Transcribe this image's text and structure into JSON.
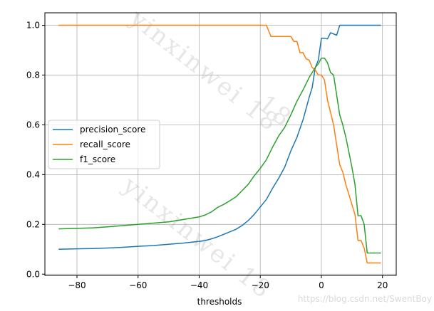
{
  "chart_data": {
    "type": "line",
    "title": "",
    "xlabel": "thresholds",
    "ylabel": "",
    "xlim": [
      -90.5,
      24.5
    ],
    "ylim": [
      -0.005,
      1.05
    ],
    "xticks": [
      -80,
      -60,
      -40,
      -20,
      0,
      20
    ],
    "xtick_labels": [
      "−80",
      "−60",
      "−40",
      "−20",
      "0",
      "20"
    ],
    "yticks": [
      0.0,
      0.2,
      0.4,
      0.6,
      0.8,
      1.0
    ],
    "ytick_labels": [
      "0.0",
      "0.2",
      "0.4",
      "0.6",
      "0.8",
      "1.0"
    ],
    "grid": true,
    "legend_position": "center-left",
    "series": [
      {
        "name": "precision_score",
        "color": "#1f77b4",
        "x": [
          -86,
          -80,
          -75,
          -70,
          -65,
          -60,
          -55,
          -50,
          -45,
          -40,
          -38,
          -36,
          -34,
          -32,
          -30,
          -28,
          -26,
          -24,
          -22,
          -20,
          -18,
          -16,
          -14,
          -12,
          -10,
          -8,
          -6,
          -4,
          -3,
          -2,
          -1,
          0,
          1,
          2,
          3,
          4,
          5,
          6,
          8,
          10,
          12,
          14,
          16,
          18,
          19.5
        ],
        "y": [
          0.1,
          0.102,
          0.103,
          0.105,
          0.108,
          0.112,
          0.115,
          0.12,
          0.125,
          0.132,
          0.135,
          0.142,
          0.15,
          0.16,
          0.17,
          0.18,
          0.195,
          0.215,
          0.24,
          0.27,
          0.3,
          0.345,
          0.385,
          0.43,
          0.495,
          0.55,
          0.62,
          0.71,
          0.75,
          0.83,
          0.86,
          0.948,
          0.948,
          0.945,
          0.97,
          0.965,
          0.96,
          1.0,
          1.0,
          1.0,
          1.0,
          1.0,
          1.0,
          1.0,
          1.0
        ]
      },
      {
        "name": "recall_score",
        "color": "#ff7f0e",
        "x": [
          -86,
          -80,
          -60,
          -40,
          -20,
          -18,
          -16.5,
          -14,
          -12,
          -10,
          -9,
          -8,
          -7,
          -6,
          -5,
          -4,
          -3,
          -2,
          -1,
          0,
          1,
          2,
          3,
          4,
          5,
          6,
          7,
          8,
          9,
          10,
          11,
          12,
          13,
          14,
          15,
          16,
          17,
          18,
          19.5
        ],
        "y": [
          1.0,
          1.0,
          1.0,
          1.0,
          1.0,
          1.0,
          0.955,
          0.955,
          0.955,
          0.955,
          0.935,
          0.935,
          0.89,
          0.89,
          0.865,
          0.86,
          0.83,
          0.82,
          0.8,
          0.8,
          0.78,
          0.7,
          0.65,
          0.6,
          0.52,
          0.44,
          0.41,
          0.36,
          0.32,
          0.28,
          0.24,
          0.135,
          0.135,
          0.105,
          0.045,
          0.045,
          0.045,
          0.045,
          0.045
        ]
      },
      {
        "name": "f1_score",
        "color": "#2ca02c",
        "x": [
          -86,
          -80,
          -75,
          -70,
          -65,
          -60,
          -55,
          -50,
          -45,
          -40,
          -38,
          -36,
          -34,
          -32,
          -30,
          -28,
          -26,
          -24,
          -22,
          -20,
          -18,
          -16,
          -14,
          -12,
          -10,
          -8,
          -6,
          -4,
          -2,
          -1,
          0,
          1,
          2,
          3,
          4,
          5,
          6,
          7,
          8,
          9,
          10,
          11,
          12,
          13,
          14,
          15,
          16,
          17,
          18,
          19.5
        ],
        "y": [
          0.182,
          0.184,
          0.186,
          0.19,
          0.195,
          0.2,
          0.205,
          0.21,
          0.22,
          0.23,
          0.238,
          0.25,
          0.268,
          0.28,
          0.295,
          0.31,
          0.335,
          0.36,
          0.395,
          0.425,
          0.46,
          0.51,
          0.555,
          0.59,
          0.64,
          0.695,
          0.74,
          0.79,
          0.83,
          0.845,
          0.868,
          0.868,
          0.85,
          0.81,
          0.8,
          0.72,
          0.64,
          0.6,
          0.55,
          0.49,
          0.43,
          0.36,
          0.235,
          0.235,
          0.2,
          0.085,
          0.085,
          0.085,
          0.085,
          0.085
        ]
      }
    ]
  },
  "watermark": {
    "diagonal_text": "yinxinwei 18",
    "diagonal_text_2": "18",
    "diagonal_text_3": "yinxinwei 18",
    "url_text": "https://blog.csdn.net/SwentBoy"
  }
}
